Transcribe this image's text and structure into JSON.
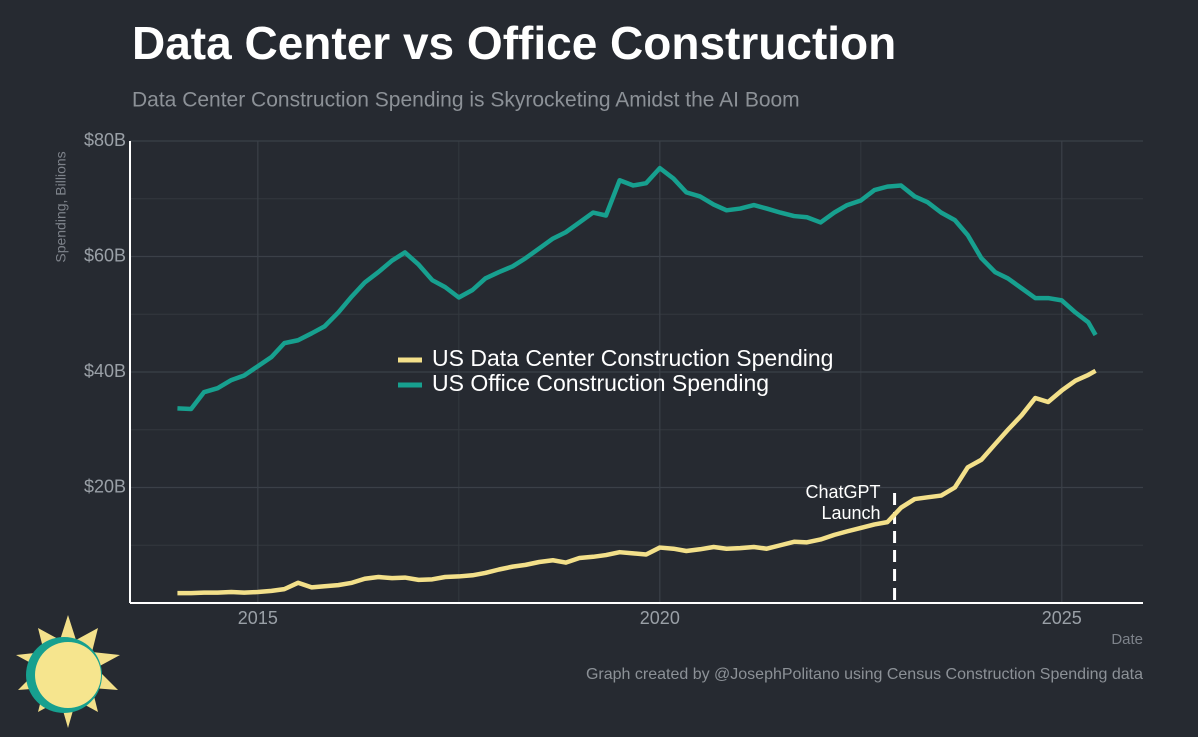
{
  "chart_data": {
    "type": "line",
    "title": "Data Center vs Office Construction",
    "subtitle": "Data Center Construction Spending is Skyrocketing Amidst the AI Boom",
    "x_label": "Date",
    "y_label": "Spending, Billions",
    "credit": "Graph created by @JosephPolitano using Census Construction Spending data",
    "x": [
      2014.0,
      2014.17,
      2014.33,
      2014.5,
      2014.67,
      2014.83,
      2015.0,
      2015.17,
      2015.33,
      2015.5,
      2015.67,
      2015.83,
      2016.0,
      2016.17,
      2016.33,
      2016.5,
      2016.67,
      2016.83,
      2017.0,
      2017.17,
      2017.33,
      2017.5,
      2017.67,
      2017.83,
      2018.0,
      2018.17,
      2018.33,
      2018.5,
      2018.67,
      2018.83,
      2019.0,
      2019.17,
      2019.33,
      2019.5,
      2019.67,
      2019.83,
      2020.0,
      2020.17,
      2020.33,
      2020.5,
      2020.67,
      2020.83,
      2021.0,
      2021.17,
      2021.33,
      2021.5,
      2021.67,
      2021.83,
      2022.0,
      2022.17,
      2022.33,
      2022.5,
      2022.67,
      2022.83,
      2023.0,
      2023.17,
      2023.33,
      2023.5,
      2023.67,
      2023.83,
      2024.0,
      2024.17,
      2024.33,
      2024.5,
      2024.67,
      2024.83,
      2025.0,
      2025.17,
      2025.33,
      2025.42
    ],
    "series": [
      {
        "name": "US Data Center Construction Spending",
        "color": "#f3e08a",
        "values": [
          1.7,
          1.7,
          1.8,
          1.8,
          1.9,
          1.8,
          1.9,
          2.1,
          2.4,
          3.5,
          2.7,
          2.9,
          3.1,
          3.5,
          4.2,
          4.5,
          4.3,
          4.4,
          4.0,
          4.1,
          4.5,
          4.6,
          4.8,
          5.2,
          5.8,
          6.3,
          6.6,
          7.1,
          7.4,
          7.0,
          7.8,
          8.0,
          8.3,
          8.8,
          8.6,
          8.4,
          9.6,
          9.4,
          9.0,
          9.3,
          9.7,
          9.4,
          9.5,
          9.7,
          9.4,
          10.0,
          10.6,
          10.5,
          11.0,
          11.8,
          12.4,
          13.0,
          13.6,
          14.0,
          16.5,
          18.0,
          18.3,
          18.6,
          20.0,
          23.5,
          24.8,
          27.5,
          30.0,
          32.5,
          35.5,
          34.8,
          36.8,
          38.5,
          39.5,
          40.2
        ]
      },
      {
        "name": "US Office Construction Spending",
        "color": "#17a08f",
        "values": [
          33.7,
          33.6,
          36.5,
          37.2,
          38.6,
          39.4,
          41.0,
          42.6,
          45.0,
          45.5,
          46.7,
          47.9,
          50.3,
          53.1,
          55.5,
          57.3,
          59.3,
          60.7,
          58.6,
          55.9,
          54.7,
          52.9,
          54.2,
          56.2,
          57.3,
          58.3,
          59.7,
          61.4,
          63.1,
          64.2,
          65.9,
          67.6,
          67.1,
          73.2,
          72.3,
          72.7,
          75.3,
          73.5,
          71.1,
          70.4,
          69.0,
          68.0,
          68.3,
          68.9,
          68.3,
          67.6,
          67.0,
          66.8,
          65.9,
          67.6,
          68.9,
          69.7,
          71.5,
          72.1,
          72.3,
          70.4,
          69.4,
          67.6,
          66.3,
          63.7,
          59.7,
          57.3,
          56.2,
          54.5,
          52.8,
          52.8,
          52.4,
          50.3,
          48.6,
          46.4
        ]
      }
    ],
    "xlim": [
      2013.41,
      2026.01
    ],
    "xticks": [
      2015,
      2020,
      2025
    ],
    "minor_xticks": [
      2017.5,
      2022.5
    ],
    "ylim": [
      0,
      80
    ],
    "yticks": [
      {
        "value": 20,
        "label": "$20B"
      },
      {
        "value": 40,
        "label": "$40B"
      },
      {
        "value": 60,
        "label": "$60B"
      },
      {
        "value": 80,
        "label": "$80B"
      }
    ],
    "minor_yticks": [
      10,
      30,
      50,
      70
    ],
    "grid": true,
    "legend": "center",
    "annotation": {
      "lines": [
        "ChatGPT",
        "Launch"
      ],
      "x": 2022.92
    }
  }
}
